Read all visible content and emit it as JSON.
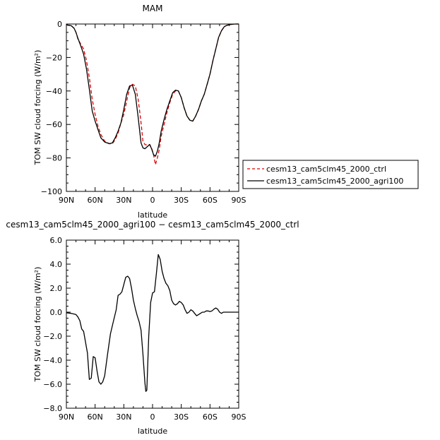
{
  "chart_data": [
    {
      "type": "line",
      "title": "MAM",
      "xlabel": "latitude",
      "ylabel": "TOM SW cloud forcing (W/m²)",
      "xlim": [
        90,
        -90
      ],
      "ylim": [
        -100,
        0
      ],
      "x_ticks": [
        90,
        60,
        30,
        0,
        -30,
        -60,
        -90
      ],
      "x_tick_labels": [
        "90N",
        "60N",
        "30N",
        "0",
        "30S",
        "60S",
        "90S"
      ],
      "y_ticks": [
        0,
        -20,
        -40,
        -60,
        -80,
        -100
      ],
      "y_tick_labels": [
        "0",
        "−20",
        "−40",
        "−60",
        "−80",
        "−100"
      ],
      "legend_position": "right",
      "series": [
        {
          "name": "cesm13_cam5clm45_2000_ctrl",
          "color": "#dd0000",
          "style": "dashed",
          "x": [
            90,
            85,
            82,
            80,
            78,
            75,
            72,
            69,
            66,
            63,
            60,
            57,
            54,
            50,
            45,
            42,
            39,
            36,
            33,
            30,
            27,
            24,
            21,
            18,
            15,
            12,
            10,
            8,
            5,
            3,
            1,
            -1,
            -3,
            -5,
            -7,
            -9,
            -12,
            -15,
            -18,
            -21,
            -24,
            -27,
            -30,
            -33,
            -36,
            -39,
            -42,
            -45,
            -48,
            -51,
            -54,
            -57,
            -60,
            -63,
            -66,
            -69,
            -72,
            -75,
            -78,
            -81,
            -84,
            -87,
            -90
          ],
          "y": [
            -0.5,
            -1,
            -2.5,
            -5,
            -9,
            -12,
            -15,
            -22,
            -32,
            -45,
            -54,
            -61,
            -66,
            -70,
            -71.5,
            -71.5,
            -69,
            -65,
            -59,
            -54,
            -46,
            -38,
            -36,
            -37,
            -45,
            -59,
            -70,
            -72,
            -72.5,
            -72,
            -74,
            -78,
            -84,
            -80,
            -75,
            -67,
            -60,
            -53,
            -47,
            -42,
            -40,
            -40,
            -44,
            -50,
            -55,
            -57.5,
            -58,
            -55,
            -51,
            -46,
            -42,
            -36,
            -30,
            -22,
            -15,
            -8,
            -4,
            -1.5,
            -0.7,
            -0.3,
            -0.1,
            0,
            0
          ]
        },
        {
          "name": "cesm13_cam5clm45_2000_agri100",
          "color": "#000000",
          "style": "solid",
          "x": [
            90,
            85,
            82,
            80,
            78,
            75,
            72,
            69,
            66,
            63,
            60,
            57,
            54,
            50,
            45,
            42,
            39,
            36,
            33,
            30,
            27,
            24,
            21,
            18,
            15,
            12,
            10,
            8,
            5,
            3,
            1,
            -1,
            -3,
            -5,
            -7,
            -9,
            -12,
            -15,
            -18,
            -21,
            -24,
            -27,
            -30,
            -33,
            -36,
            -39,
            -42,
            -45,
            -48,
            -51,
            -54,
            -57,
            -60,
            -63,
            -66,
            -69,
            -72,
            -75,
            -78,
            -81,
            -84,
            -87,
            -90
          ],
          "y": [
            -0.5,
            -1,
            -2.5,
            -5,
            -8.5,
            -13,
            -18,
            -27,
            -39,
            -52,
            -58,
            -63,
            -68,
            -70.5,
            -71.5,
            -71,
            -68,
            -64,
            -59,
            -51,
            -42,
            -37,
            -36.5,
            -42,
            -56,
            -71,
            -74,
            -74.5,
            -73,
            -72,
            -74.5,
            -78,
            -79,
            -76,
            -71,
            -64,
            -57,
            -51,
            -46,
            -41,
            -39.5,
            -40,
            -44,
            -50,
            -55,
            -57.5,
            -58,
            -55,
            -51,
            -46,
            -42,
            -36,
            -30,
            -22,
            -15,
            -8,
            -4,
            -1.5,
            -0.7,
            -0.3,
            -0.1,
            0,
            0
          ]
        }
      ]
    },
    {
      "type": "line",
      "title": "cesm13_cam5clm45_2000_agri100 − cesm13_cam5clm45_2000_ctrl",
      "xlabel": "latitude",
      "ylabel": "TOM SW cloud forcing (W/m²)",
      "xlim": [
        90,
        -90
      ],
      "ylim": [
        -8.0,
        6.0
      ],
      "x_ticks": [
        90,
        60,
        30,
        0,
        -30,
        -60,
        -90
      ],
      "x_tick_labels": [
        "90N",
        "60N",
        "30N",
        "0",
        "30S",
        "60S",
        "90S"
      ],
      "y_ticks": [
        6,
        4,
        2,
        0,
        -2,
        -4,
        -6,
        -8
      ],
      "y_tick_labels": [
        "6.0",
        "4.0",
        "2.0",
        "0.0",
        "−2.0",
        "−4.0",
        "−6.0",
        "−8.0"
      ],
      "series": [
        {
          "color": "#000000",
          "style": "solid",
          "x": [
            90,
            85,
            82,
            80,
            78,
            76,
            74,
            72,
            70,
            68,
            66,
            64,
            62,
            60,
            58,
            56,
            54,
            52,
            50,
            47,
            44,
            41,
            38,
            36,
            34,
            32,
            30,
            28,
            26,
            24,
            22,
            20,
            18,
            16,
            14,
            12,
            10,
            8,
            7,
            6,
            4,
            2,
            0,
            -2,
            -4,
            -6,
            -8,
            -10,
            -12,
            -14,
            -16,
            -18,
            -20,
            -22,
            -24,
            -26,
            -28,
            -30,
            -32,
            -34,
            -36,
            -38,
            -40,
            -42,
            -44,
            -46,
            -48,
            -50,
            -52,
            -54,
            -56,
            -58,
            -60,
            -62,
            -64,
            -66,
            -68,
            -70,
            -72,
            -74,
            -76,
            -78,
            -81,
            -84,
            -87,
            -90
          ],
          "y": [
            -0.05,
            -0.1,
            -0.15,
            -0.2,
            -0.4,
            -0.7,
            -1.4,
            -1.6,
            -2.5,
            -3.4,
            -5.6,
            -5.5,
            -3.7,
            -3.8,
            -4.9,
            -5.8,
            -6.0,
            -5.8,
            -5.3,
            -3.5,
            -1.8,
            -0.8,
            0.2,
            1.4,
            1.5,
            1.7,
            2.3,
            2.9,
            3.0,
            2.8,
            2.0,
            1.0,
            0.3,
            -0.3,
            -0.8,
            -1.5,
            -3.5,
            -5.9,
            -6.6,
            -6.5,
            -2.0,
            0.8,
            1.6,
            1.7,
            3.2,
            4.8,
            4.4,
            3.4,
            2.8,
            2.4,
            2.2,
            1.8,
            1.0,
            0.7,
            0.6,
            0.7,
            0.9,
            0.8,
            0.6,
            0.2,
            -0.1,
            0.0,
            0.2,
            0.1,
            -0.1,
            -0.3,
            -0.2,
            -0.1,
            0.0,
            0.0,
            0.1,
            0.1,
            0.05,
            0.1,
            0.25,
            0.35,
            0.25,
            0.0,
            -0.1,
            0.0,
            0.0,
            0.0,
            0.0,
            0.0,
            0.0,
            0.0
          ]
        }
      ]
    }
  ]
}
